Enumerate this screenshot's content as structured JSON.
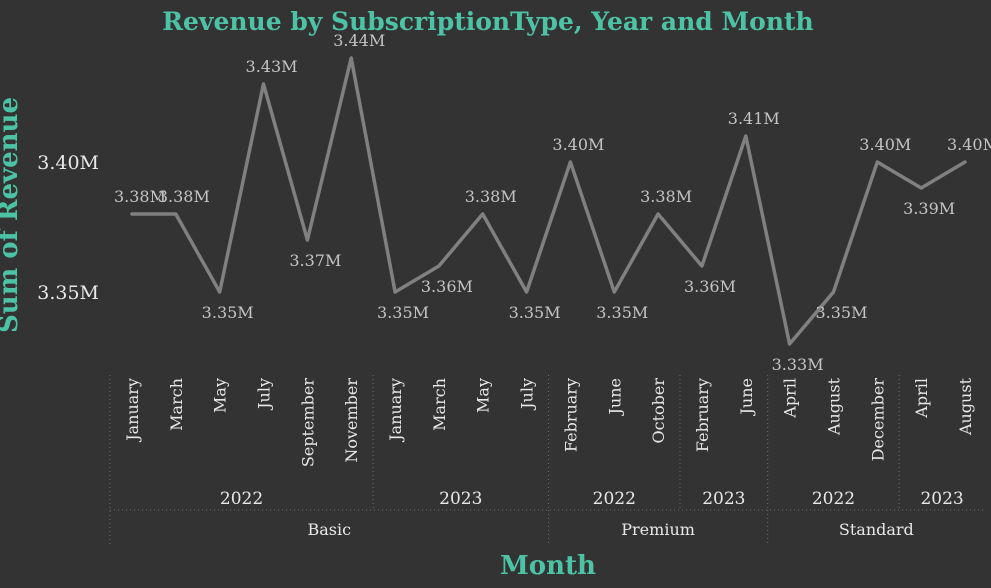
{
  "chart_data": {
    "type": "line",
    "title": "Revenue by SubscriptionType, Year and Month",
    "xlabel": "Month",
    "ylabel": "Sum of Revenue",
    "y_ticks": [
      "3.35M",
      "3.40M"
    ],
    "y_tick_values": [
      3.35,
      3.4
    ],
    "line_color": "#808080",
    "title_color": "#4dc3a6",
    "background_color": "#333333",
    "grid": false,
    "legend": "none",
    "points": [
      {
        "type": "Basic",
        "year": "2022",
        "month": "January",
        "value": 3.38,
        "label": "3.38M"
      },
      {
        "type": "Basic",
        "year": "2022",
        "month": "March",
        "value": 3.38,
        "label": "3.38M"
      },
      {
        "type": "Basic",
        "year": "2022",
        "month": "May",
        "value": 3.35,
        "label": "3.35M"
      },
      {
        "type": "Basic",
        "year": "2022",
        "month": "July",
        "value": 3.43,
        "label": "3.43M"
      },
      {
        "type": "Basic",
        "year": "2022",
        "month": "September",
        "value": 3.37,
        "label": "3.37M"
      },
      {
        "type": "Basic",
        "year": "2022",
        "month": "November",
        "value": 3.44,
        "label": "3.44M"
      },
      {
        "type": "Basic",
        "year": "2023",
        "month": "January",
        "value": 3.35,
        "label": "3.35M"
      },
      {
        "type": "Basic",
        "year": "2023",
        "month": "March",
        "value": 3.36,
        "label": "3.36M"
      },
      {
        "type": "Basic",
        "year": "2023",
        "month": "May",
        "value": 3.38,
        "label": "3.38M"
      },
      {
        "type": "Basic",
        "year": "2023",
        "month": "July",
        "value": 3.35,
        "label": "3.35M"
      },
      {
        "type": "Premium",
        "year": "2022",
        "month": "February",
        "value": 3.4,
        "label": "3.40M"
      },
      {
        "type": "Premium",
        "year": "2022",
        "month": "June",
        "value": 3.35,
        "label": "3.35M"
      },
      {
        "type": "Premium",
        "year": "2022",
        "month": "October",
        "value": 3.38,
        "label": "3.38M"
      },
      {
        "type": "Premium",
        "year": "2023",
        "month": "February",
        "value": 3.36,
        "label": "3.36M"
      },
      {
        "type": "Premium",
        "year": "2023",
        "month": "June",
        "value": 3.41,
        "label": "3.41M"
      },
      {
        "type": "Standard",
        "year": "2022",
        "month": "April",
        "value": 3.33,
        "label": "3.33M"
      },
      {
        "type": "Standard",
        "year": "2022",
        "month": "August",
        "value": 3.35,
        "label": "3.35M"
      },
      {
        "type": "Standard",
        "year": "2022",
        "month": "December",
        "value": 3.4,
        "label": "3.40M"
      },
      {
        "type": "Standard",
        "year": "2023",
        "month": "April",
        "value": 3.39,
        "label": "3.39M"
      },
      {
        "type": "Standard",
        "year": "2023",
        "month": "August",
        "value": 3.4,
        "label": "3.40M"
      }
    ]
  }
}
